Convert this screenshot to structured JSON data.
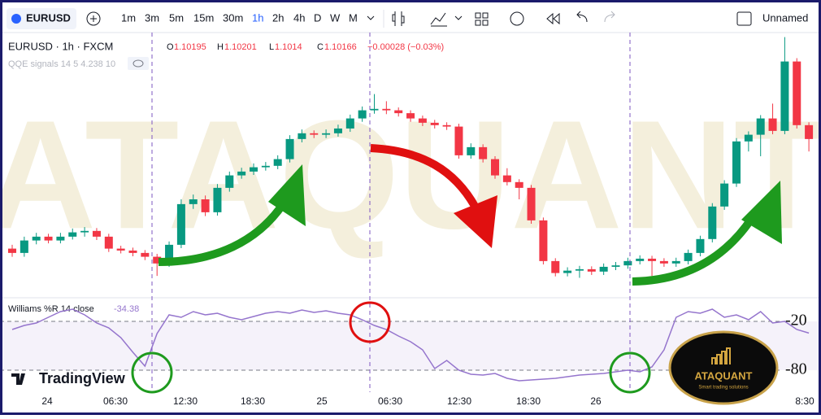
{
  "toolbar": {
    "symbol": "EURUSD",
    "timeframes": [
      "1m",
      "3m",
      "5m",
      "15m",
      "30m",
      "1h",
      "2h",
      "4h",
      "D",
      "W",
      "M"
    ],
    "layout_name": "Unnamed"
  },
  "chart_data": {
    "type": "candlestick",
    "title": "EURUSD · 1h · FXCM",
    "header": {
      "labels": [
        "O",
        "H",
        "L",
        "C"
      ],
      "change": "−0.00028 (−0.03%)"
    },
    "indicator": "QQE signals 14 5 4.238 10",
    "up_color": "#089981",
    "down_color": "#f23645",
    "ylim": [
      1.0987,
      1.1038
    ],
    "x_labels": [
      "24",
      "06:30",
      "12:30",
      "18:30",
      "25",
      "06:30",
      "12:30",
      "18:30",
      "26",
      "8:30"
    ],
    "candles": [
      [
        1.09937,
        1.09945,
        1.0992,
        1.09928
      ],
      [
        1.09928,
        1.09962,
        1.0992,
        1.09954
      ],
      [
        1.09954,
        1.0997,
        1.09946,
        1.09962
      ],
      [
        1.09962,
        1.09968,
        1.09948,
        1.09954
      ],
      [
        1.09954,
        1.0997,
        1.09948,
        1.09962
      ],
      [
        1.09962,
        1.09979,
        1.09956,
        1.09971
      ],
      [
        1.09971,
        1.09982,
        1.09962,
        1.09974
      ],
      [
        1.09974,
        1.0998,
        1.09955,
        1.09962
      ],
      [
        1.09962,
        1.09968,
        1.0993,
        1.09937
      ],
      [
        1.09937,
        1.09943,
        1.09927,
        1.09933
      ],
      [
        1.09933,
        1.09939,
        1.09921,
        1.09928
      ],
      [
        1.09928,
        1.09934,
        1.09913,
        1.0992
      ],
      [
        1.0992,
        1.09926,
        1.0988,
        1.09906
      ],
      [
        1.09906,
        1.09952,
        1.09899,
        1.09945
      ],
      [
        1.09945,
        1.1004,
        1.09938,
        1.1003
      ],
      [
        1.1003,
        1.1005,
        1.1002,
        1.1004
      ],
      [
        1.1004,
        1.10048,
        1.10005,
        1.10013
      ],
      [
        1.10013,
        1.10072,
        1.10006,
        1.10064
      ],
      [
        1.10064,
        1.10098,
        1.10056,
        1.1009
      ],
      [
        1.1009,
        1.10106,
        1.10083,
        1.10098
      ],
      [
        1.10098,
        1.10115,
        1.10091,
        1.10107
      ],
      [
        1.10107,
        1.10118,
        1.101,
        1.1011
      ],
      [
        1.1011,
        1.10132,
        1.10103,
        1.10124
      ],
      [
        1.10124,
        1.10174,
        1.10117,
        1.10166
      ],
      [
        1.10166,
        1.10186,
        1.10159,
        1.10178
      ],
      [
        1.10178,
        1.10184,
        1.10168,
        1.10175
      ],
      [
        1.10175,
        1.10186,
        1.10168,
        1.10178
      ],
      [
        1.10178,
        1.10196,
        1.10171,
        1.10188
      ],
      [
        1.10188,
        1.10217,
        1.10181,
        1.10209
      ],
      [
        1.10209,
        1.10234,
        1.10202,
        1.10226
      ],
      [
        1.10226,
        1.1026,
        1.10219,
        1.10229
      ],
      [
        1.10229,
        1.10245,
        1.10218,
        1.10226
      ],
      [
        1.10226,
        1.10232,
        1.10213,
        1.1022
      ],
      [
        1.1022,
        1.10226,
        1.10202,
        1.10209
      ],
      [
        1.10209,
        1.10215,
        1.10193,
        1.102
      ],
      [
        1.102,
        1.10206,
        1.10188,
        1.10195
      ],
      [
        1.10195,
        1.10201,
        1.10185,
        1.10192
      ],
      [
        1.10192,
        1.10198,
        1.10125,
        1.10132
      ],
      [
        1.10132,
        1.10157,
        1.10125,
        1.10149
      ],
      [
        1.10149,
        1.10155,
        1.10117,
        1.10124
      ],
      [
        1.10124,
        1.1013,
        1.10083,
        1.1009
      ],
      [
        1.1009,
        1.10105,
        1.10069,
        1.10076
      ],
      [
        1.10076,
        1.10082,
        1.1004,
        1.10064
      ],
      [
        1.10064,
        1.1007,
        1.09989,
        1.09996
      ],
      [
        1.09996,
        1.10002,
        1.09904,
        1.09911
      ],
      [
        1.09911,
        1.09917,
        1.09879,
        1.09886
      ],
      [
        1.09886,
        1.09898,
        1.09879,
        1.09891
      ],
      [
        1.09891,
        1.09901,
        1.09876,
        1.09894
      ],
      [
        1.09894,
        1.099,
        1.09882,
        1.09889
      ],
      [
        1.09889,
        1.09906,
        1.09882,
        1.09899
      ],
      [
        1.09899,
        1.09909,
        1.09892,
        1.09902
      ],
      [
        1.09902,
        1.09918,
        1.09895,
        1.09911
      ],
      [
        1.09911,
        1.09923,
        1.09904,
        1.09916
      ],
      [
        1.09916,
        1.09922,
        1.0988,
        1.09911
      ],
      [
        1.09911,
        1.09917,
        1.09899,
        1.09906
      ],
      [
        1.09906,
        1.09918,
        1.09899,
        1.09911
      ],
      [
        1.09911,
        1.09935,
        1.09904,
        1.09928
      ],
      [
        1.09928,
        1.09964,
        1.09921,
        1.09957
      ],
      [
        1.09957,
        1.10032,
        1.0995,
        1.10025
      ],
      [
        1.10025,
        1.1008,
        1.10018,
        1.10073
      ],
      [
        1.10073,
        1.10168,
        1.10066,
        1.10161
      ],
      [
        1.10161,
        1.10182,
        1.1014,
        1.10175
      ],
      [
        1.10175,
        1.10216,
        1.1013,
        1.10209
      ],
      [
        1.10209,
        1.1024,
        1.10176,
        1.10183
      ],
      [
        1.10183,
        1.10379,
        1.10176,
        1.10328
      ],
      [
        1.10328,
        1.10335,
        1.10188,
        1.10195
      ],
      [
        1.10195,
        1.10201,
        1.1014,
        1.10166
      ]
    ],
    "oscillator": {
      "title": "Williams %R 14 close",
      "color": "#9575cd",
      "ylim": [
        -100,
        0
      ],
      "yticks": [
        -20,
        -80
      ],
      "values": [
        -30,
        -25,
        -22,
        -15,
        -8,
        -5,
        -12,
        -22,
        -28,
        -40,
        -58,
        -75,
        -35,
        -12,
        -15,
        -8,
        -12,
        -10,
        -15,
        -18,
        -14,
        -10,
        -8,
        -10,
        -6,
        -9,
        -7,
        -10,
        -12,
        -18,
        -25,
        -30,
        -38,
        -45,
        -55,
        -78,
        -68,
        -80,
        -85,
        -86,
        -84,
        -90,
        -93,
        -92,
        -91,
        -90,
        -88,
        -86,
        -85,
        -84,
        -82,
        -80,
        -82,
        -76,
        -55,
        -15,
        -8,
        -10,
        -5,
        -15,
        -12,
        -18,
        -8,
        -22,
        -20,
        -30,
        -34.38
      ]
    }
  },
  "branding": {
    "platform": "TradingView",
    "watermark": "ATAQUANT",
    "logo_name": "ATAQUANT",
    "logo_tagline": "Smart trading solutions"
  }
}
